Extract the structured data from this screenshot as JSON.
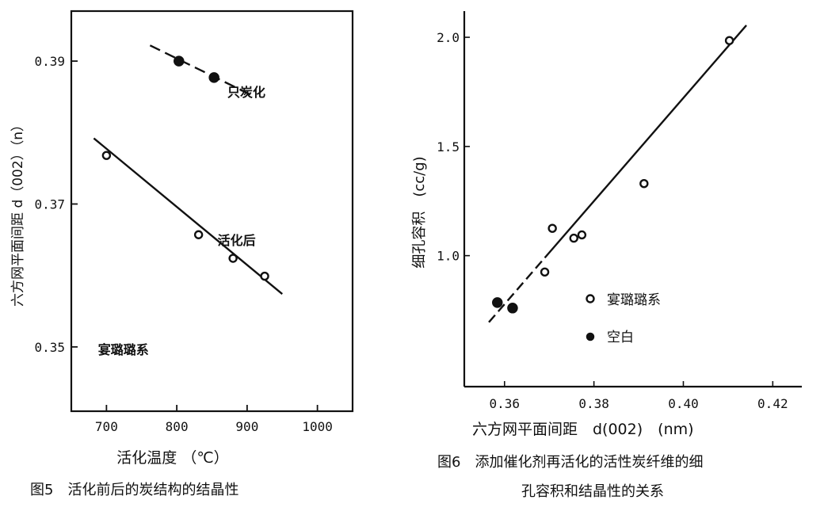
{
  "chart_data": [
    {
      "type": "scatter",
      "title": "",
      "xlabel": "活化温度 （℃）",
      "ylabel": "六方网平面间距 d（002）（n）",
      "xlim": [
        650,
        1050
      ],
      "ylim": [
        0.341,
        0.397
      ],
      "xticks": [
        700,
        800,
        900,
        1000
      ],
      "yticks": [
        0.35,
        0.37,
        0.39
      ],
      "x_tick_labels": [
        "700",
        "800",
        "900",
        "1000"
      ],
      "y_tick_labels": [
        "0.35",
        "0.37",
        "0.39"
      ],
      "grid": false,
      "series": [
        {
          "name": "只炭化",
          "marker": "filled",
          "points": [
            {
              "x": 803,
              "y": 0.39
            },
            {
              "x": 853,
              "y": 0.3877
            }
          ],
          "trend_line": {
            "from": {
              "x": 762,
              "y": 0.3922
            },
            "to": {
              "x": 905,
              "y": 0.3853
            },
            "dashed": true
          }
        },
        {
          "name": "活化后",
          "marker": "open",
          "points": [
            {
              "x": 700,
              "y": 0.3768
            },
            {
              "x": 831,
              "y": 0.3657
            },
            {
              "x": 880,
              "y": 0.3624
            },
            {
              "x": 925,
              "y": 0.3599
            }
          ],
          "trend_line": {
            "from": {
              "x": 682,
              "y": 0.3792
            },
            "to": {
              "x": 950,
              "y": 0.3574
            },
            "dashed": false
          }
        }
      ],
      "annotations": [
        {
          "text": "只炭化",
          "x": 872,
          "y": 0.385
        },
        {
          "text": "活化后",
          "x": 858,
          "y": 0.3643
        },
        {
          "text": "宴璐璐系",
          "x": 688,
          "y": 0.349
        }
      ],
      "caption": "图5　活化前后的炭结构的结晶性"
    },
    {
      "type": "scatter",
      "title": "",
      "xlabel": "六方网平面间距　d(002)　(nm)",
      "ylabel": "细孔容积　(cc/g)",
      "xlim": [
        0.351,
        0.4265
      ],
      "ylim": [
        0.4,
        2.12
      ],
      "xticks": [
        0.36,
        0.38,
        0.4,
        0.42
      ],
      "yticks": [
        1.0,
        1.5,
        2.0
      ],
      "x_tick_labels": [
        "0.36",
        "0.38",
        "0.40",
        "0.42"
      ],
      "y_tick_labels": [
        "1.0",
        "1.5",
        "2.0"
      ],
      "grid": false,
      "series": [
        {
          "name": "宴璐璐系",
          "marker": "open",
          "points": [
            {
              "x": 0.369,
              "y": 0.925
            },
            {
              "x": 0.3707,
              "y": 1.125
            },
            {
              "x": 0.3755,
              "y": 1.08
            },
            {
              "x": 0.3773,
              "y": 1.095
            },
            {
              "x": 0.3912,
              "y": 1.33
            },
            {
              "x": 0.4103,
              "y": 1.985
            }
          ]
        },
        {
          "name": "空白",
          "marker": "filled",
          "points": [
            {
              "x": 0.3584,
              "y": 0.785
            },
            {
              "x": 0.3618,
              "y": 0.76
            }
          ]
        }
      ],
      "trend_line": {
        "from": {
          "x": 0.3565,
          "y": 0.695
        },
        "to": {
          "x": 0.4141,
          "y": 2.055
        },
        "dashed_start_until_x": 0.369
      },
      "legend_position": "right-center",
      "caption_lines": [
        "图6　添加催化剂再活化的活性炭纤维的细",
        "孔容积和结晶性的关系"
      ]
    }
  ]
}
